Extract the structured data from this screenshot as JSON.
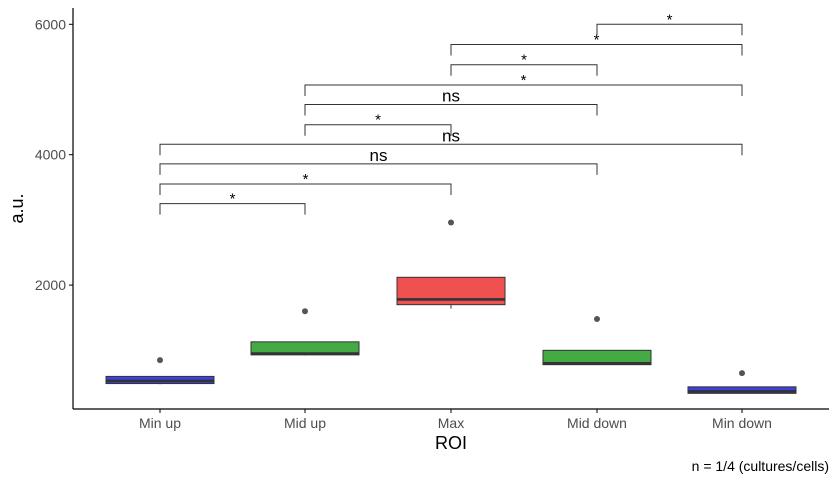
{
  "chart_data": {
    "type": "box",
    "xlabel": "ROI",
    "ylabel": "a.u.",
    "caption": "n = 1/4 (cultures/cells)",
    "categories": [
      "Min up",
      "Mid up",
      "Max",
      "Mid down",
      "Min down"
    ],
    "yticks": [
      2000,
      4000,
      6000
    ],
    "ylim": [
      100,
      6250
    ],
    "grid": false,
    "boxes": [
      {
        "category": "Min up",
        "fill": "#4040e0",
        "whisker_low": 480,
        "q1": 490,
        "median": 530,
        "q3": 600,
        "whisker_high": 600,
        "outliers": [
          850
        ]
      },
      {
        "category": "Mid up",
        "fill": "#44aa44",
        "whisker_low": 920,
        "q1": 930,
        "median": 950,
        "q3": 1130,
        "whisker_high": 1130,
        "outliers": [
          1600
        ]
      },
      {
        "category": "Max",
        "fill": "#f05050",
        "whisker_low": 1640,
        "q1": 1700,
        "median": 1780,
        "q3": 2120,
        "whisker_high": 2120,
        "outliers": [
          2960
        ]
      },
      {
        "category": "Mid down",
        "fill": "#44aa44",
        "whisker_low": 780,
        "q1": 780,
        "median": 800,
        "q3": 1000,
        "whisker_high": 1000,
        "outliers": [
          1480
        ]
      },
      {
        "category": "Min down",
        "fill": "#4040e0",
        "whisker_low": 340,
        "q1": 340,
        "median": 370,
        "q3": 440,
        "whisker_high": 440,
        "outliers": [
          650
        ]
      }
    ],
    "comparisons": [
      {
        "from": "Min up",
        "to": "Mid up",
        "y": 3250,
        "label": "*"
      },
      {
        "from": "Min up",
        "to": "Max",
        "y": 3550,
        "label": "*"
      },
      {
        "from": "Min up",
        "to": "Mid down",
        "y": 3860,
        "label": "ns"
      },
      {
        "from": "Min up",
        "to": "Min down",
        "y": 4160,
        "label": "ns"
      },
      {
        "from": "Mid up",
        "to": "Max",
        "y": 4460,
        "label": "*"
      },
      {
        "from": "Mid up",
        "to": "Mid down",
        "y": 4770,
        "label": "ns"
      },
      {
        "from": "Mid up",
        "to": "Min down",
        "y": 5070,
        "label": "*"
      },
      {
        "from": "Max",
        "to": "Mid down",
        "y": 5380,
        "label": "*"
      },
      {
        "from": "Max",
        "to": "Min down",
        "y": 5690,
        "label": "*"
      },
      {
        "from": "Mid down",
        "to": "Min down",
        "y": 6000,
        "label": "*"
      }
    ],
    "colors": {
      "axis": "#000000",
      "box_outline": "#333333",
      "outlier": "#555555",
      "bracket": "#333333"
    }
  }
}
